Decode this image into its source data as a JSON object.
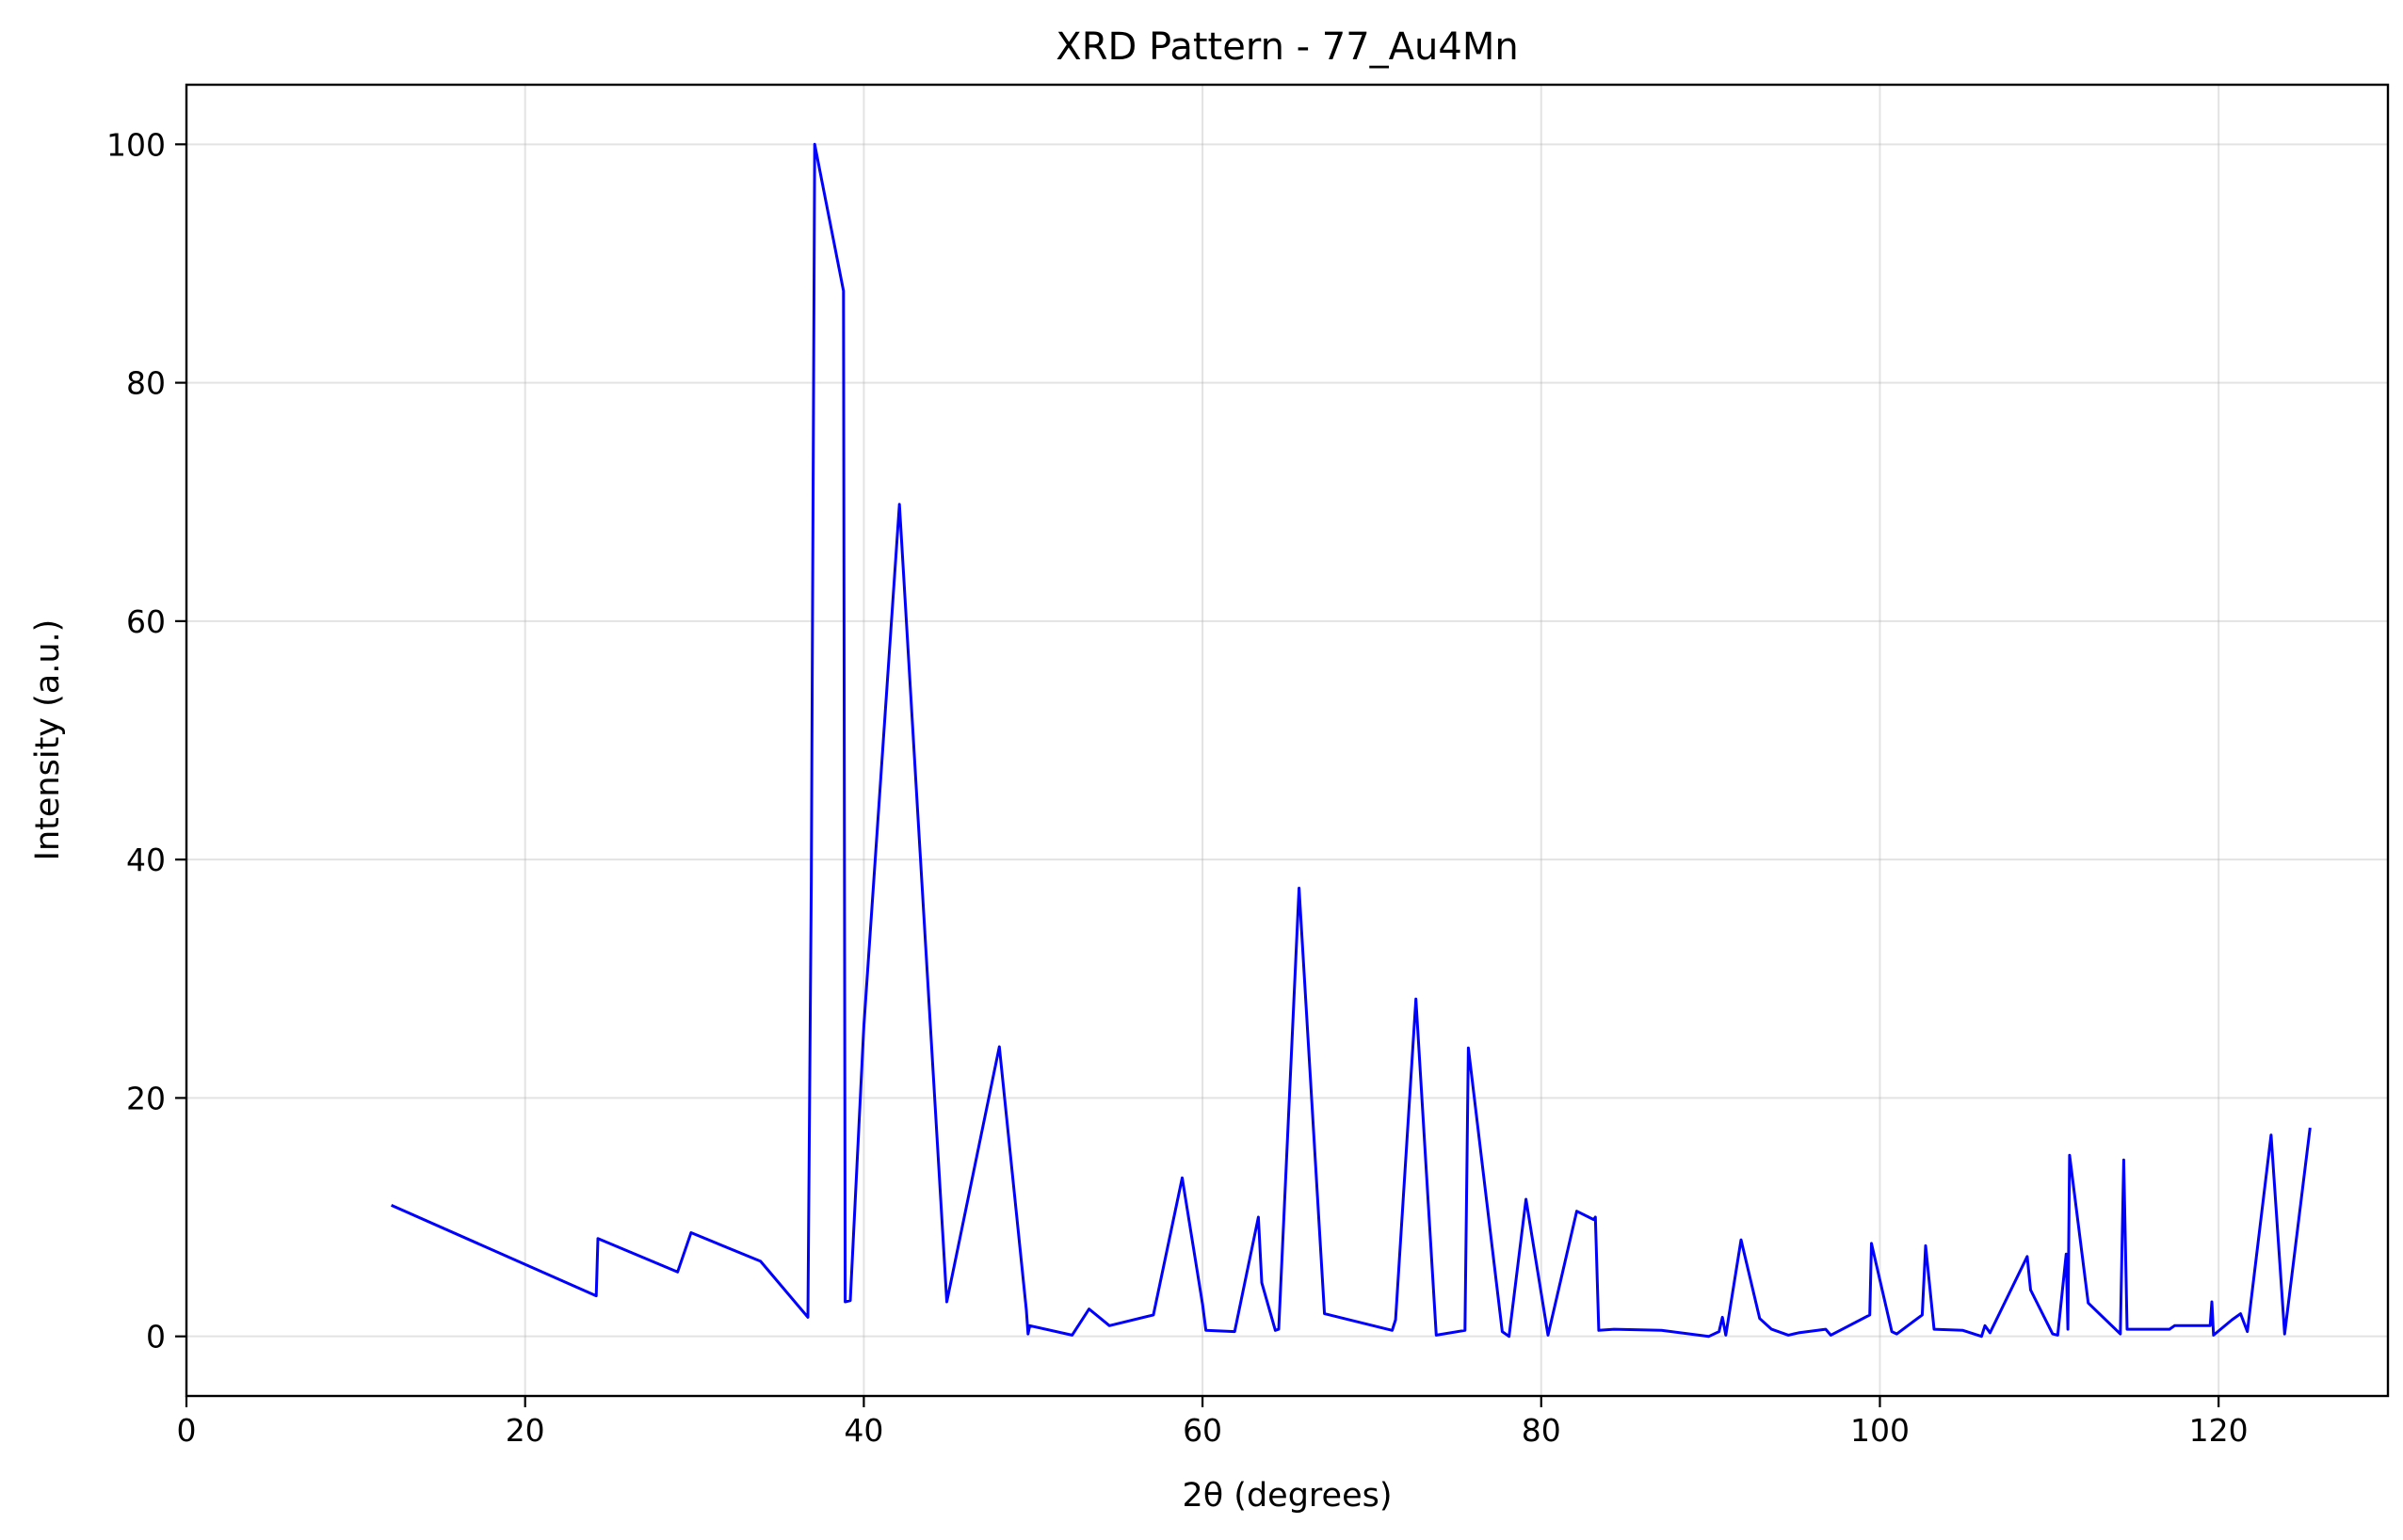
{
  "chart_data": {
    "type": "line",
    "title": "XRD Pattern - 77_Au4Mn",
    "xlabel": "2θ (degrees)",
    "ylabel": "Intensity (a.u.)",
    "xlim": [
      0,
      130
    ],
    "ylim": [
      -5,
      105
    ],
    "xticks": [
      0,
      20,
      40,
      60,
      80,
      100,
      120
    ],
    "yticks": [
      0,
      20,
      40,
      60,
      80,
      100
    ],
    "grid": true,
    "series": [
      {
        "color": "#0000ff",
        "x": [
          12.1,
          24.2,
          24.3,
          29.0,
          29.8,
          33.9,
          36.7,
          36.9,
          37.1,
          38.8,
          38.9,
          39.2,
          40.0,
          42.1,
          44.9,
          48.0,
          49.6,
          49.7,
          49.8,
          52.3,
          53.3,
          54.5,
          57.1,
          58.8,
          60.0,
          60.2,
          61.9,
          63.3,
          63.5,
          64.3,
          64.5,
          65.7,
          67.2,
          71.2,
          71.4,
          72.6,
          73.8,
          75.5,
          75.7,
          77.7,
          78.1,
          79.1,
          80.4,
          82.1,
          83.1,
          83.2,
          83.4,
          84.3,
          87.1,
          89.9,
          90.5,
          90.7,
          90.9,
          91.8,
          92.9,
          93.6,
          94.6,
          95.2,
          96.8,
          97.1,
          99.4,
          99.5,
          100.7,
          101.0,
          102.5,
          102.7,
          103.2,
          104.9,
          106.0,
          106.2,
          106.5,
          108.7,
          108.9,
          110.2,
          110.5,
          111.0,
          111.1,
          111.2,
          112.3,
          114.2,
          114.4,
          114.6,
          117.1,
          117.4,
          119.5,
          119.6,
          119.7,
          120.8,
          121.3,
          121.7,
          123.1,
          123.9,
          125.4
        ],
        "values": [
          11.0,
          3.4,
          8.2,
          5.4,
          8.7,
          6.3,
          1.6,
          38.0,
          100.0,
          87.7,
          2.9,
          3.0,
          26.0,
          69.8,
          2.9,
          24.3,
          2.2,
          0.2,
          0.9,
          0.1,
          2.3,
          0.9,
          1.8,
          13.3,
          2.7,
          0.5,
          0.4,
          10.0,
          4.5,
          0.5,
          0.6,
          37.6,
          1.9,
          0.5,
          1.4,
          28.3,
          0.1,
          0.5,
          24.2,
          0.4,
          0.0,
          11.5,
          0.1,
          10.5,
          9.8,
          10.0,
          0.5,
          0.6,
          0.5,
          0.0,
          0.4,
          1.6,
          0.1,
          8.1,
          1.5,
          0.6,
          0.1,
          0.3,
          0.6,
          0.1,
          1.8,
          7.8,
          0.4,
          0.2,
          1.8,
          7.6,
          0.6,
          0.5,
          0.0,
          0.9,
          0.3,
          6.7,
          3.9,
          0.2,
          0.1,
          6.9,
          0.6,
          15.2,
          2.8,
          0.2,
          14.8,
          0.6,
          0.6,
          0.9,
          0.9,
          2.9,
          0.1,
          1.4,
          1.9,
          0.4,
          16.9,
          0.2,
          17.5
        ]
      }
    ]
  }
}
